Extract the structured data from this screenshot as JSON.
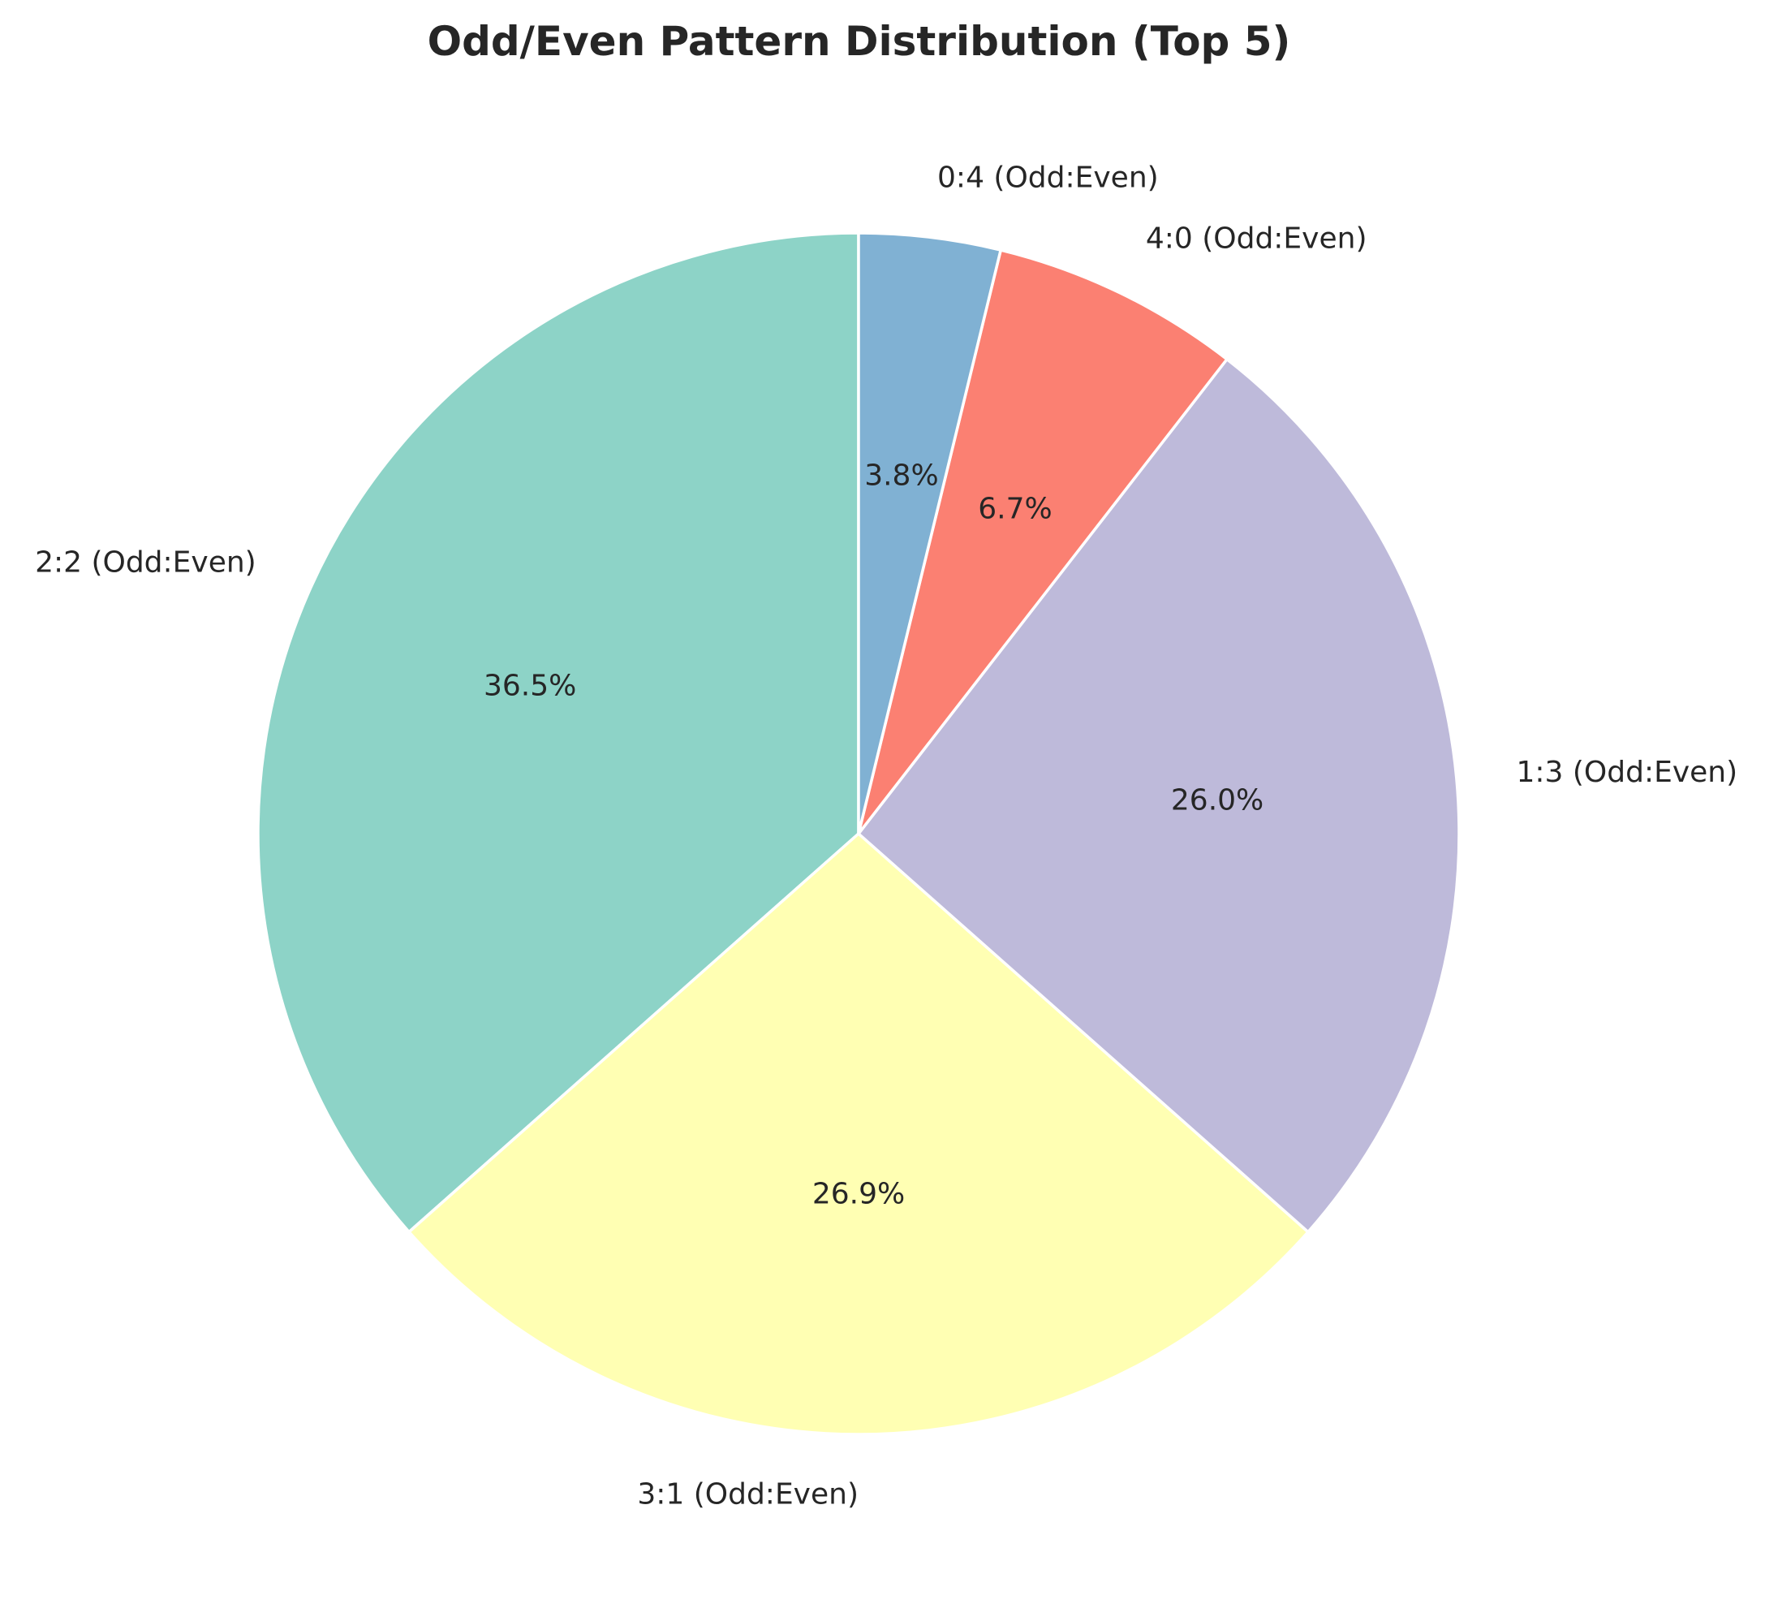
{
  "chart_data": {
    "type": "pie",
    "title": "Odd/Even Pattern Distribution (Top 5)",
    "start_angle_deg": 90,
    "direction": "counterclockwise",
    "slices": [
      {
        "label": "2:2 (Odd:Even)",
        "value": 36.5,
        "pct_text": "36.5%",
        "color": "#8dd3c7"
      },
      {
        "label": "3:1 (Odd:Even)",
        "value": 26.9,
        "pct_text": "26.9%",
        "color": "#ffffb3"
      },
      {
        "label": "1:3 (Odd:Even)",
        "value": 26.0,
        "pct_text": "26.0%",
        "color": "#bebada"
      },
      {
        "label": "4:0 (Odd:Even)",
        "value": 6.7,
        "pct_text": "6.7%",
        "color": "#fb8072"
      },
      {
        "label": "0:4 (Odd:Even)",
        "value": 3.8,
        "pct_text": "3.8%",
        "color": "#80b1d3"
      }
    ]
  }
}
